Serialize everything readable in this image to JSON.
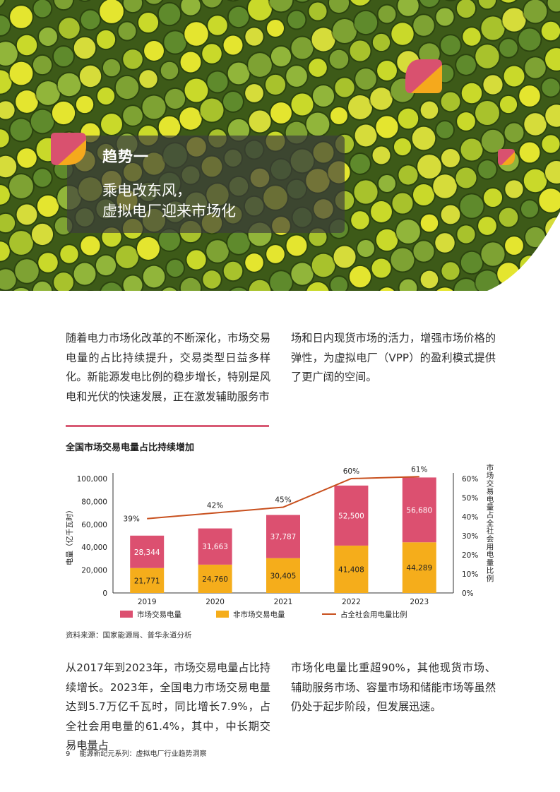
{
  "hero": {
    "trend_label": "趋势一",
    "title_line1": "乘电改东风，",
    "title_line2": "虚拟电厂迎来市场化",
    "colors": {
      "petal_pink": "#d9516f",
      "petal_orange": "#f5a91c",
      "overlay": "#3c3c3c"
    }
  },
  "intro": {
    "col1": "随着电力市场化改革的不断深化，市场交易电量的占比持续提升，交易类型日益多样化。新能源发电比例的稳步增长，特别是风电和光伏的快速发展，正在激发辅助服务市",
    "col2": "场和日内现货市场的活力，增强市场价格的弹性，为虚拟电厂（VPP）的盈利模式提供了更广阔的空间。"
  },
  "chart_title": "全国市场交易电量占比持续增加",
  "chart_data": {
    "type": "bar",
    "stacked": true,
    "categories": [
      "2019",
      "2020",
      "2021",
      "2022",
      "2023"
    ],
    "series": [
      {
        "name": "非市场交易电量",
        "values": [
          21771,
          24760,
          30405,
          41408,
          44289
        ],
        "color": "#f5ad1b",
        "labels": [
          "21,771",
          "24,760",
          "30,405",
          "41,408",
          "44,289"
        ]
      },
      {
        "name": "市场交易电量",
        "values": [
          28344,
          31663,
          37787,
          52500,
          56680
        ],
        "color": "#dc5070",
        "labels": [
          "28,344",
          "31,663",
          "37,787",
          "52,500",
          "56,680"
        ]
      }
    ],
    "line_series": {
      "name": "占全社会用电量比例",
      "values": [
        39,
        42,
        45,
        60,
        61
      ],
      "labels": [
        "39%",
        "42%",
        "45%",
        "60%",
        "61%"
      ],
      "color": "#c8501e"
    },
    "ylabel": "电量（亿千瓦时）",
    "ylabel_right": "市场交易电量占全社会用电量比例",
    "ylim": [
      0,
      100000
    ],
    "yticks": [
      "0",
      "20,000",
      "40,000",
      "60,000",
      "80,000",
      "100,000"
    ],
    "ylim_right": [
      0,
      60
    ],
    "yticks_right": [
      "0%",
      "10%",
      "20%",
      "30%",
      "40%",
      "50%",
      "60%"
    ],
    "legend": [
      "市场交易电量",
      "非市场交易电量",
      "占全社会用电量比例"
    ],
    "legend_position": "bottom",
    "grid": false
  },
  "source": "资料来源：国家能源局、普华永道分析",
  "analysis": {
    "col1": "从2017年到2023年，市场交易电量占比持续增长。2023年，全国电力市场交易电量达到5.7万亿千瓦时，同比增长7.9%，占全社会用电量的61.4%，其中，中长期交易电量占",
    "col2": "市场化电量比重超90%，其他现货市场、辅助服务市场、容量市场和储能市场等虽然仍处于起步阶段，但发展迅速。"
  },
  "footer": {
    "page": "9",
    "text": "能源新纪元系列：虚拟电厂行业趋势洞察"
  }
}
